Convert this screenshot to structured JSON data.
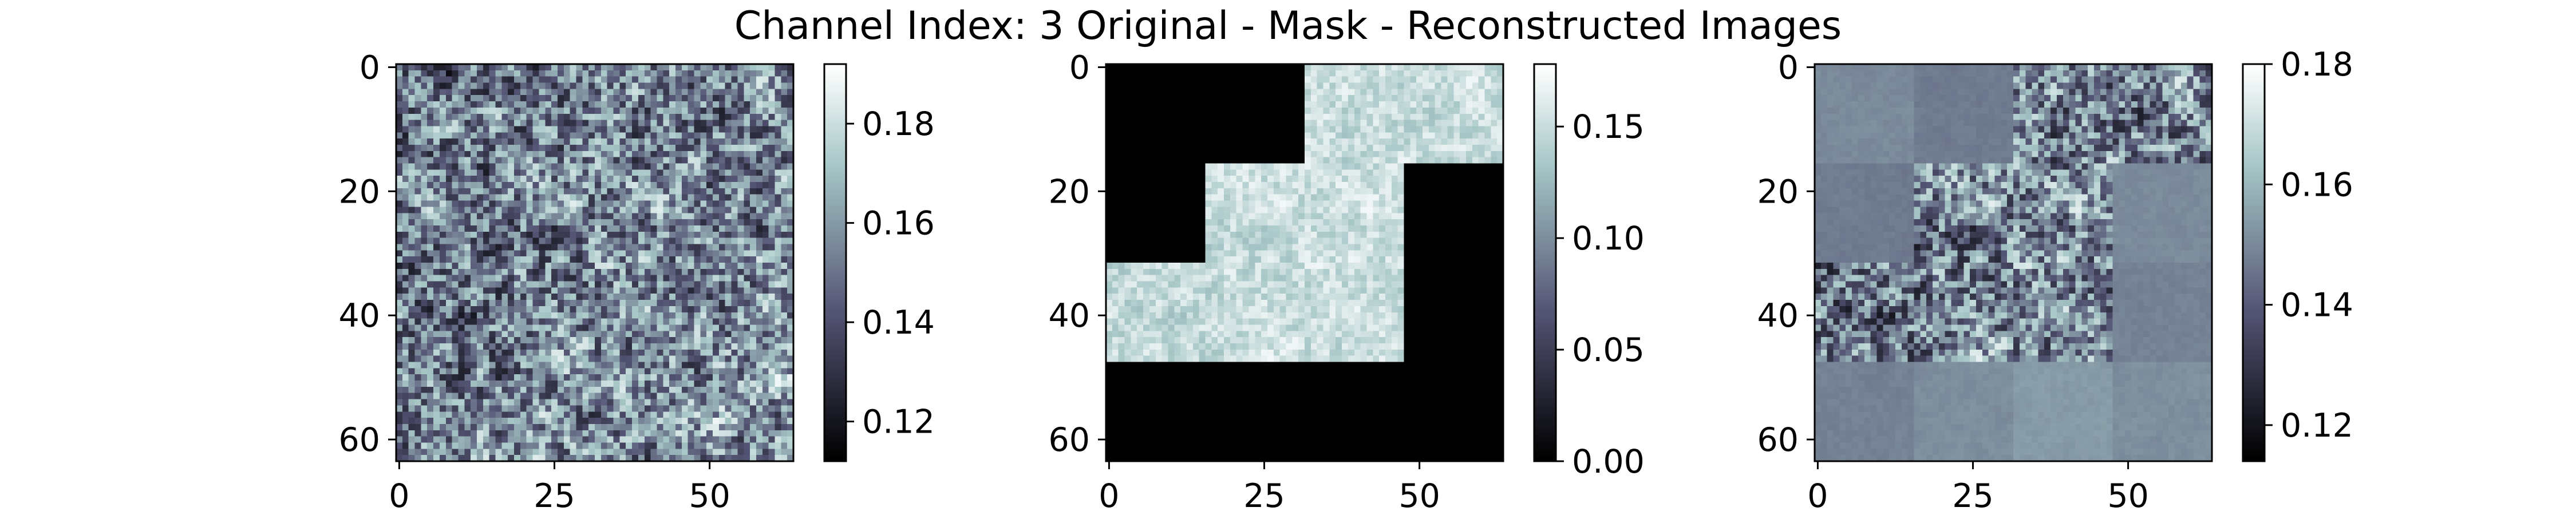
{
  "title": "Channel Index: 3 Original - Mask - Reconstructed Images",
  "colormap": "bone",
  "chart_data": [
    {
      "type": "heatmap",
      "panel": "original",
      "rows": 64,
      "cols": 64,
      "xlim": [
        0,
        63
      ],
      "ylim": [
        63,
        0
      ],
      "xticks": [
        0,
        25,
        50
      ],
      "yticks": [
        0,
        20,
        40,
        60
      ],
      "value_range": [
        0.112,
        0.192
      ],
      "colorbar_ticks": [
        "0.12",
        "0.14",
        "0.16",
        "0.18"
      ],
      "colorbar_tick_values": [
        0.12,
        0.14,
        0.16,
        0.18
      ]
    },
    {
      "type": "heatmap",
      "panel": "masked",
      "rows": 64,
      "cols": 64,
      "xlim": [
        0,
        63
      ],
      "ylim": [
        63,
        0
      ],
      "xticks": [
        0,
        25,
        50
      ],
      "yticks": [
        0,
        20,
        40,
        60
      ],
      "value_range": [
        0.0,
        0.178
      ],
      "colorbar_ticks": [
        "0.00",
        "0.05",
        "0.10",
        "0.15"
      ],
      "colorbar_tick_values": [
        0.0,
        0.05,
        0.1,
        0.15
      ],
      "visible_patches_16px": [
        [
          0,
          2
        ],
        [
          0,
          3
        ],
        [
          1,
          1
        ],
        [
          1,
          2
        ],
        [
          2,
          0
        ],
        [
          2,
          1
        ],
        [
          2,
          2
        ]
      ]
    },
    {
      "type": "heatmap",
      "panel": "reconstructed",
      "rows": 64,
      "cols": 64,
      "xlim": [
        0,
        63
      ],
      "ylim": [
        63,
        0
      ],
      "xticks": [
        0,
        25,
        50
      ],
      "yticks": [
        0,
        20,
        40,
        60
      ],
      "value_range": [
        0.114,
        0.18
      ],
      "colorbar_ticks": [
        "0.12",
        "0.14",
        "0.16",
        "0.18"
      ],
      "colorbar_tick_values": [
        0.12,
        0.14,
        0.16,
        0.18
      ]
    }
  ]
}
